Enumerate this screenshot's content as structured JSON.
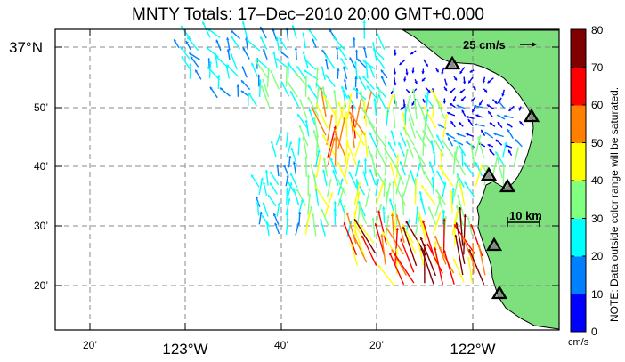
{
  "title": "MNTY Totals: 17–Dec–2010 20:00 GMT+0.000",
  "map": {
    "land_color": "#7de07d",
    "water_color": "#ffffff",
    "grid_color": "#888888",
    "lat_labels": [
      "37°N",
      "50’",
      "40’",
      "30’",
      "20’"
    ],
    "lon_labels": [
      "20’",
      "123°W",
      "40’",
      "20’",
      "122°W"
    ],
    "velocity_scale_label": "25 cm/s",
    "distance_scale_label": "10 km",
    "stations": [
      "station-1",
      "station-2",
      "station-3",
      "station-4",
      "station-5",
      "station-6"
    ]
  },
  "colorbar": {
    "ticks": [
      "80",
      "70",
      "60",
      "50",
      "40",
      "30",
      "20",
      "10",
      "0"
    ],
    "units": "cm/s",
    "note": "NOTE: Data outside color range will be saturated.",
    "colors": [
      "#0000ff",
      "#0080ff",
      "#00ffff",
      "#80ff80",
      "#ffff00",
      "#ff8000",
      "#ff0000",
      "#800000"
    ]
  }
}
